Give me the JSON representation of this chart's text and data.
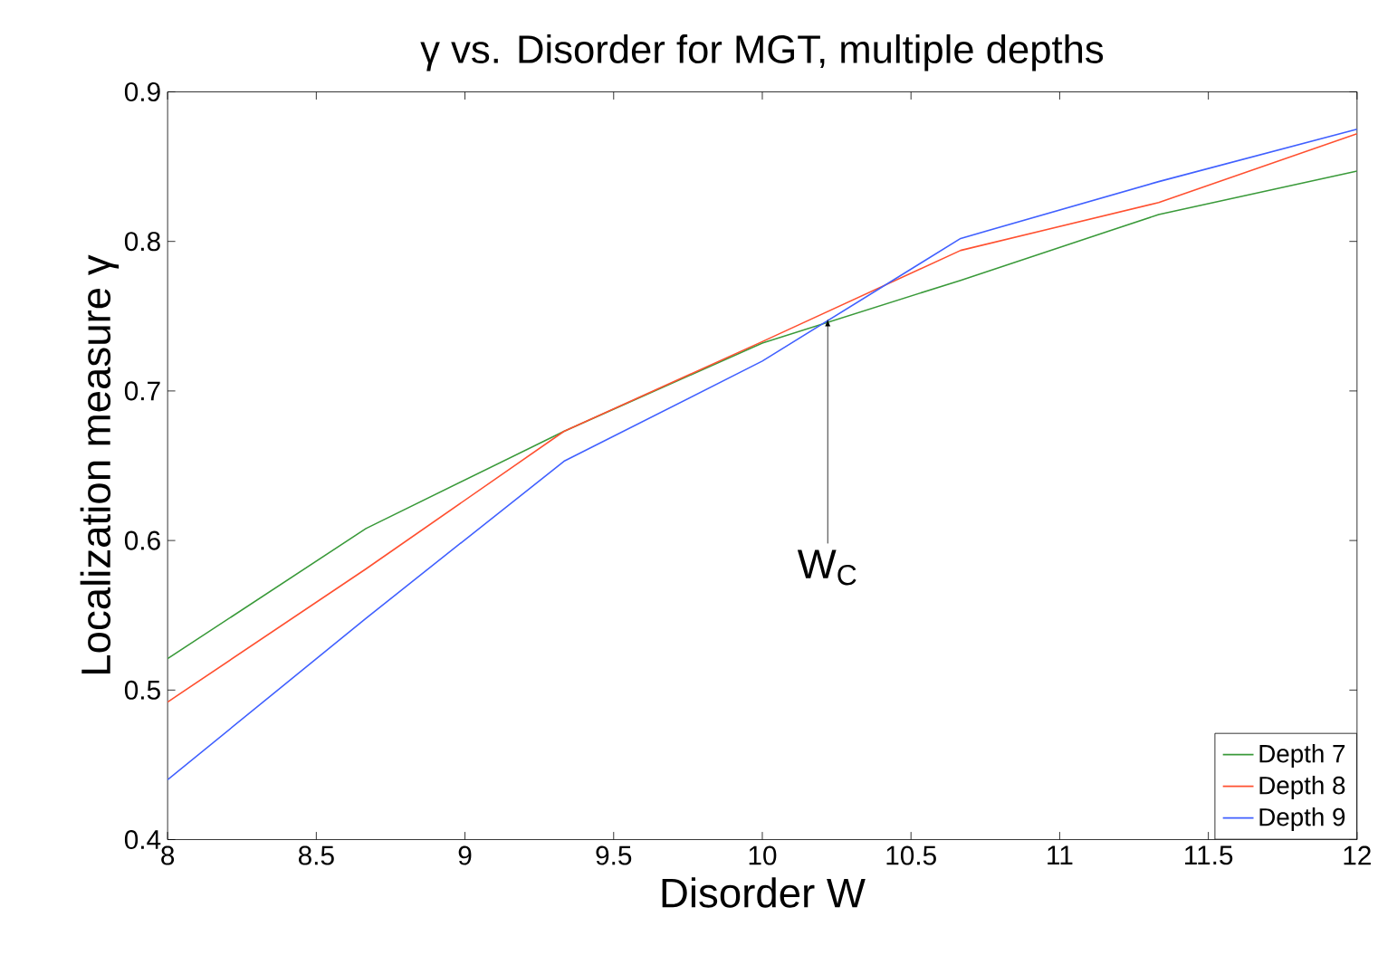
{
  "chart_data": {
    "type": "line",
    "title": "γ vs. Disorder for MGT, multiple depths",
    "xlabel": "Disorder W",
    "ylabel": "Localization measure γ",
    "x": [
      8,
      8.667,
      9.333,
      10,
      10.667,
      11.333,
      12
    ],
    "series": [
      {
        "name": "Depth 7",
        "color": "#3a9a3a",
        "values": [
          0.521,
          0.608,
          0.673,
          0.732,
          0.774,
          0.818,
          0.847
        ]
      },
      {
        "name": "Depth 8",
        "color": "#ff5030",
        "values": [
          0.492,
          0.581,
          0.673,
          0.733,
          0.794,
          0.826,
          0.872
        ]
      },
      {
        "name": "Depth 9",
        "color": "#4060ff",
        "values": [
          0.44,
          0.548,
          0.653,
          0.72,
          0.802,
          0.84,
          0.875
        ]
      }
    ],
    "xlim": [
      8,
      12
    ],
    "ylim": [
      0.4,
      0.9
    ],
    "xticks": [
      8,
      8.5,
      9,
      9.5,
      10,
      10.5,
      11,
      11.5,
      12
    ],
    "yticks": [
      0.4,
      0.5,
      0.6,
      0.7,
      0.8,
      0.9
    ],
    "annotations": [
      {
        "text": "W$_{C}$",
        "x": 10.22,
        "y": 0.748
      }
    ],
    "grid": false,
    "legend": "bottom right",
    "marker": "none",
    "line_style": "solid"
  }
}
